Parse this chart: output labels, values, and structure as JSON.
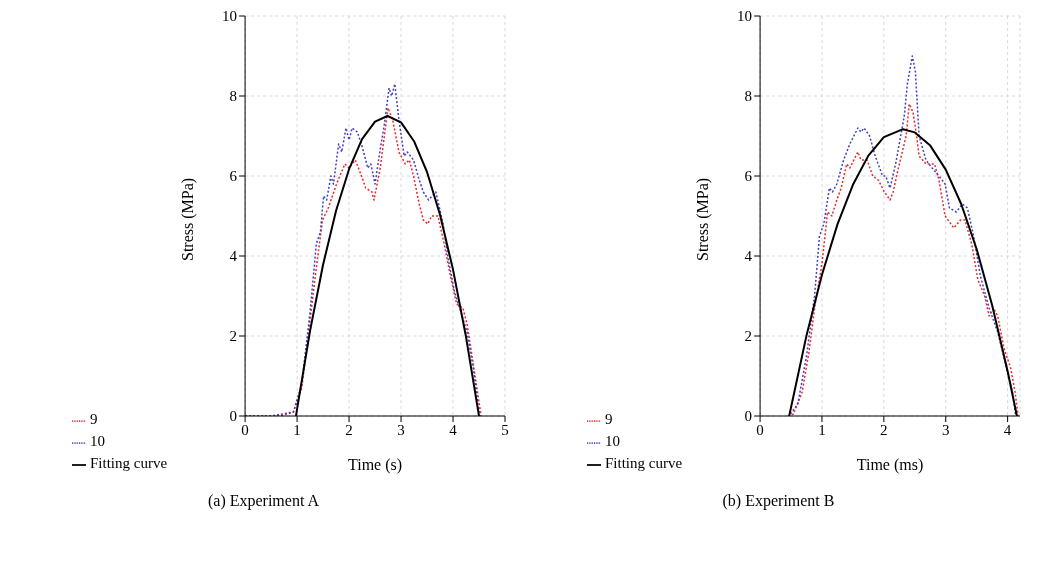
{
  "chart_data": [
    {
      "type": "line",
      "xlabel": "Time (s)",
      "ylabel": "Stress (MPa)",
      "annotations": [
        "(a) Experiment A"
      ],
      "xlim": [
        0,
        5
      ],
      "ylim": [
        0,
        10
      ],
      "xticks": [
        0,
        1,
        2,
        3,
        4,
        5
      ],
      "yticks": [
        0,
        2,
        4,
        6,
        8,
        10
      ],
      "grid": true,
      "legend": "bottom",
      "series": [
        {
          "name": "9",
          "color": "#e8282b",
          "line_style": "dotted",
          "x": [
            0,
            0.5,
            0.73,
            0.93,
            1.09,
            1.25,
            1.37,
            1.49,
            1.6,
            1.76,
            1.92,
            2.0,
            2.12,
            2.24,
            2.32,
            2.44,
            2.48,
            2.6,
            2.68,
            2.75,
            2.84,
            2.96,
            3.08,
            3.16,
            3.24,
            3.35,
            3.43,
            3.51,
            3.59,
            3.71,
            3.83,
            3.95,
            4.07,
            4.19,
            4.27,
            4.39,
            4.54
          ],
          "values": [
            0,
            0,
            0.02,
            0.1,
            0.7,
            2.4,
            3.7,
            4.9,
            5.2,
            5.8,
            6.3,
            6.2,
            6.4,
            6.0,
            5.7,
            5.6,
            5.4,
            6.2,
            7.0,
            7.7,
            7.4,
            6.6,
            6.3,
            6.4,
            6.0,
            5.3,
            4.9,
            4.8,
            5.0,
            5.0,
            4.3,
            3.5,
            2.8,
            2.7,
            2.3,
            1.3,
            0
          ]
        },
        {
          "name": "10",
          "color": "#4040c0",
          "line_style": "dotted",
          "x": [
            0,
            0.5,
            0.93,
            1.09,
            1.25,
            1.37,
            1.45,
            1.51,
            1.57,
            1.65,
            1.7,
            1.8,
            1.86,
            1.94,
            2.0,
            2.06,
            2.16,
            2.26,
            2.36,
            2.42,
            2.5,
            2.58,
            2.68,
            2.77,
            2.82,
            2.88,
            2.96,
            3.06,
            3.12,
            3.24,
            3.35,
            3.43,
            3.53,
            3.67,
            3.81,
            3.91,
            4.03,
            4.15,
            4.27,
            4.39,
            4.51
          ],
          "values": [
            0,
            0,
            0.1,
            0.8,
            2.6,
            4.3,
            4.6,
            5.5,
            5.4,
            6.0,
            5.8,
            6.8,
            6.6,
            7.2,
            6.9,
            7.2,
            7.1,
            6.7,
            6.2,
            6.3,
            5.8,
            6.5,
            7.3,
            8.2,
            8.0,
            8.3,
            7.4,
            6.5,
            6.6,
            6.4,
            5.9,
            5.6,
            5.4,
            5.6,
            4.8,
            3.9,
            3.1,
            2.6,
            2.1,
            1.2,
            0
          ]
        },
        {
          "name": "Fitting curve",
          "color": "#000000",
          "line_style": "solid",
          "x": [
            0.98,
            1.0,
            1.25,
            1.5,
            1.75,
            2.0,
            2.25,
            2.5,
            2.74,
            3.0,
            3.25,
            3.5,
            3.75,
            4.0,
            4.25,
            4.5
          ],
          "values": [
            0,
            0.17,
            2.13,
            3.78,
            5.13,
            6.17,
            6.92,
            7.36,
            7.5,
            7.34,
            6.87,
            6.1,
            5.03,
            3.66,
            1.98,
            0
          ]
        }
      ]
    },
    {
      "type": "line",
      "xlabel": "Time (ms)",
      "ylabel": "Stress (MPa)",
      "annotations": [
        "(b) Experiment B"
      ],
      "xlim": [
        0,
        4.2
      ],
      "ylim": [
        0,
        10
      ],
      "xticks": [
        0,
        1,
        2,
        3,
        4
      ],
      "yticks": [
        0,
        2,
        4,
        6,
        8,
        10
      ],
      "grid": true,
      "legend": "bottom",
      "series": [
        {
          "name": "9",
          "color": "#e8282b",
          "line_style": "dotted",
          "x": [
            0.45,
            0.54,
            0.68,
            0.79,
            0.89,
            1.0,
            1.09,
            1.16,
            1.24,
            1.31,
            1.4,
            1.45,
            1.58,
            1.63,
            1.73,
            1.82,
            1.91,
            2.01,
            2.1,
            2.15,
            2.22,
            2.36,
            2.41,
            2.47,
            2.53,
            2.57,
            2.68,
            2.82,
            2.89,
            2.99,
            3.13,
            3.24,
            3.31,
            3.42,
            3.52,
            3.63,
            3.7,
            3.77,
            3.84,
            3.94,
            4.05,
            4.12,
            4.17
          ],
          "values": [
            0,
            0.05,
            0.6,
            1.6,
            2.8,
            3.8,
            5.1,
            5.0,
            5.4,
            5.7,
            6.3,
            6.2,
            6.6,
            6.4,
            6.4,
            6.0,
            5.9,
            5.6,
            5.4,
            5.6,
            6.1,
            7.0,
            7.8,
            7.6,
            7.0,
            6.5,
            6.3,
            6.3,
            5.9,
            5.0,
            4.7,
            4.9,
            4.9,
            4.3,
            3.4,
            3.0,
            2.5,
            2.7,
            2.5,
            1.7,
            1.2,
            0.6,
            0
          ]
        },
        {
          "name": "10",
          "color": "#4040c0",
          "line_style": "dotted",
          "x": [
            0.49,
            0.61,
            0.75,
            0.88,
            0.96,
            1.03,
            1.12,
            1.17,
            1.24,
            1.35,
            1.45,
            1.58,
            1.63,
            1.68,
            1.77,
            1.86,
            1.98,
            2.03,
            2.1,
            2.19,
            2.26,
            2.33,
            2.38,
            2.46,
            2.51,
            2.57,
            2.68,
            2.78,
            2.89,
            2.99,
            3.06,
            3.17,
            3.27,
            3.35,
            3.45,
            3.56,
            3.7,
            3.84,
            3.98,
            4.08,
            4.13
          ],
          "values": [
            0.05,
            0.3,
            1.5,
            3.0,
            4.5,
            4.8,
            5.7,
            5.6,
            5.8,
            6.4,
            6.8,
            7.2,
            7.1,
            7.2,
            7.0,
            6.5,
            6.0,
            6.0,
            5.7,
            6.3,
            6.9,
            7.5,
            8.3,
            9.0,
            8.6,
            7.0,
            6.4,
            6.2,
            6.0,
            5.8,
            5.2,
            5.1,
            5.3,
            5.2,
            4.5,
            3.5,
            2.7,
            2.1,
            1.2,
            0.6,
            0
          ]
        },
        {
          "name": "Fitting curve",
          "color": "#000000",
          "line_style": "solid",
          "x": [
            0.47,
            0.75,
            1.0,
            1.25,
            1.5,
            1.75,
            2.0,
            2.31,
            2.5,
            2.75,
            3.0,
            3.25,
            3.5,
            3.75,
            4.0,
            4.15
          ],
          "values": [
            0,
            2.01,
            3.53,
            4.79,
            5.78,
            6.51,
            6.97,
            7.17,
            7.09,
            6.76,
            6.16,
            5.3,
            4.17,
            2.77,
            1.12,
            0
          ]
        }
      ]
    }
  ]
}
